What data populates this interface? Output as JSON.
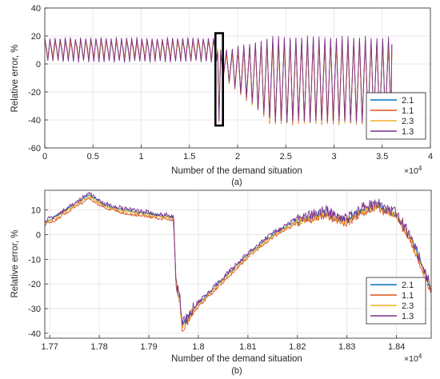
{
  "colors": {
    "series": [
      "#0072BD",
      "#D95319",
      "#EDB120",
      "#7E2F8E"
    ],
    "axis": "#262626",
    "grid": "#DFDFDF",
    "highlight_box": "#000000"
  },
  "chart_data": [
    {
      "type": "line",
      "panel_label": "(a)",
      "xlabel": "Number of the demand situation",
      "ylabel": "Relative error, %",
      "x_exponent_label": "×10",
      "x_exponent": "4",
      "xlim": [
        0,
        40000
      ],
      "ylim": [
        -60,
        40
      ],
      "xticks": [
        0,
        5000,
        10000,
        15000,
        20000,
        25000,
        30000,
        35000,
        40000
      ],
      "xtick_labels": [
        "0",
        "0.5",
        "1",
        "1.5",
        "2",
        "2.5",
        "3",
        "3.5",
        "4"
      ],
      "yticks": [
        -60,
        -40,
        -20,
        0,
        20,
        40
      ],
      "ytick_labels": [
        "-60",
        "-40",
        "-20",
        "0",
        "20",
        "40"
      ],
      "grid": true,
      "legend_position": "lower-right",
      "legend": [
        "2.1",
        "1.1",
        "2.3",
        "1.3"
      ],
      "highlight_region": {
        "x": [
          17700,
          18480
        ],
        "y": [
          -44,
          22
        ]
      },
      "series": [
        {
          "name": "2.1",
          "x_range": [
            0,
            36000
          ],
          "regime_change_x": 17950,
          "stage1": {
            "cycle_length": 530,
            "low": 2,
            "high": 18
          },
          "stage2": {
            "cycle_length": 600,
            "low_start": -8,
            "low_end": -42,
            "high_start": 8,
            "high_end": 18
          }
        },
        {
          "name": "1.1",
          "x_range": [
            0,
            36000
          ],
          "regime_change_x": 17950,
          "stage1": {
            "cycle_length": 530,
            "low": 3,
            "high": 17
          },
          "stage2": {
            "cycle_length": 600,
            "low_start": -9,
            "low_end": -44,
            "high_start": 7,
            "high_end": 17
          }
        },
        {
          "name": "2.3",
          "x_range": [
            0,
            36000
          ],
          "regime_change_x": 17950,
          "stage1": {
            "cycle_length": 530,
            "low": 2,
            "high": 18
          },
          "stage2": {
            "cycle_length": 600,
            "low_start": -8,
            "low_end": -43,
            "high_start": 8,
            "high_end": 18
          }
        },
        {
          "name": "1.3",
          "x_range": [
            0,
            36000
          ],
          "regime_change_x": 17950,
          "stage1": {
            "cycle_length": 530,
            "low": 1,
            "high": 19
          },
          "stage2": {
            "cycle_length": 600,
            "low_start": -8,
            "low_end": -42,
            "high_start": 9,
            "high_end": 20
          }
        }
      ]
    },
    {
      "type": "line",
      "panel_label": "(b)",
      "xlabel": "Number of the demand situation",
      "ylabel": "Relative error, %",
      "x_exponent_label": "×10",
      "x_exponent": "4",
      "xlim": [
        17690,
        18470
      ],
      "ylim": [
        -42,
        18
      ],
      "xticks": [
        17700,
        17800,
        17900,
        18000,
        18100,
        18200,
        18300,
        18400
      ],
      "xtick_labels": [
        "1.77",
        "1.78",
        "1.79",
        "1.8",
        "1.81",
        "1.82",
        "1.83",
        "1.84"
      ],
      "yticks": [
        -40,
        -30,
        -20,
        -10,
        0,
        10
      ],
      "ytick_labels": [
        "-40",
        "-30",
        "-20",
        "-10",
        "0",
        "10"
      ],
      "grid": true,
      "legend_position": "lower-right",
      "legend": [
        "2.1",
        "1.1",
        "2.3",
        "1.3"
      ],
      "base_curve": {
        "x": [
          17690,
          17710,
          17740,
          17780,
          17795,
          17810,
          17850,
          17880,
          17950,
          17955,
          17958,
          17962,
          17967,
          17975,
          17990,
          18040,
          18100,
          18150,
          18200,
          18240,
          18260,
          18275,
          18300,
          18330,
          18360,
          18400,
          18430,
          18450,
          18470
        ],
        "y": [
          5,
          7,
          11,
          16,
          14,
          12,
          10,
          9,
          7,
          -20,
          -23,
          -25,
          -37,
          -35,
          -30,
          -20,
          -8,
          0,
          6,
          8,
          9,
          7,
          6,
          10,
          12,
          8,
          -2,
          -12,
          -22
        ]
      },
      "series": [
        {
          "name": "2.1",
          "offset": 0,
          "noise": 1.8
        },
        {
          "name": "1.1",
          "offset": -1.2,
          "noise": 1.8
        },
        {
          "name": "2.3",
          "offset": -0.4,
          "noise": 1.8
        },
        {
          "name": "1.3",
          "offset": 0.6,
          "noise": 2.6
        }
      ]
    }
  ]
}
